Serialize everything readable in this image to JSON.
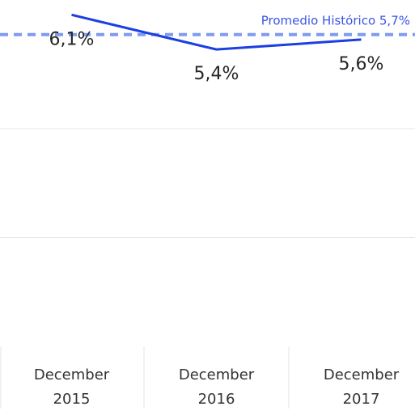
{
  "chart_data": {
    "type": "line",
    "categories": [
      "December 2015",
      "December 2016",
      "December 2017"
    ],
    "series": [
      {
        "color": "#1b3fe0",
        "values": [
          6.1,
          5.4,
          5.6
        ],
        "value_labels": [
          "6,1%",
          "5,4%",
          "5,6%"
        ]
      }
    ],
    "reference_lines": [
      {
        "value": 5.7,
        "label": "Promedio Histórico 5,7%",
        "color": "#7f9cf0",
        "label_color": "#3a55e6"
      }
    ],
    "ylim": [
      -0.6,
      6.4
    ],
    "yticks": [
      1.6,
      3.8
    ],
    "grid": true
  }
}
